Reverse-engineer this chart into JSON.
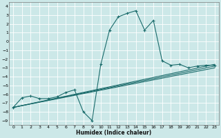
{
  "xlabel": "Humidex (Indice chaleur)",
  "bg_color": "#cce8e8",
  "grid_color": "#ffffff",
  "line_color": "#1a6b6b",
  "xlim": [
    -0.5,
    23.5
  ],
  "ylim": [
    -9.5,
    4.5
  ],
  "xticks": [
    0,
    1,
    2,
    3,
    4,
    5,
    6,
    7,
    8,
    9,
    10,
    11,
    12,
    13,
    14,
    15,
    16,
    17,
    18,
    19,
    20,
    21,
    22,
    23
  ],
  "yticks": [
    4,
    3,
    2,
    1,
    0,
    -1,
    -2,
    -3,
    -4,
    -5,
    -6,
    -7,
    -8,
    -9
  ],
  "main_x": [
    0,
    1,
    2,
    3,
    4,
    5,
    6,
    7,
    8,
    9,
    10,
    11,
    12,
    13,
    14,
    15,
    16,
    17,
    18,
    19,
    20,
    21,
    22,
    23
  ],
  "main_y": [
    -7.5,
    -6.4,
    -6.2,
    -6.5,
    -6.5,
    -6.3,
    -5.8,
    -5.5,
    -8.0,
    -9.0,
    -2.6,
    1.3,
    2.8,
    3.2,
    3.5,
    1.3,
    2.4,
    -2.2,
    -2.7,
    -2.6,
    -3.0,
    -2.8,
    -2.7,
    -2.7
  ],
  "line1_x": [
    0,
    23
  ],
  "line1_y": [
    -7.5,
    -2.6
  ],
  "line2_x": [
    0,
    23
  ],
  "line2_y": [
    -7.5,
    -2.8
  ],
  "line3_x": [
    0,
    23
  ],
  "line3_y": [
    -7.5,
    -3.0
  ]
}
